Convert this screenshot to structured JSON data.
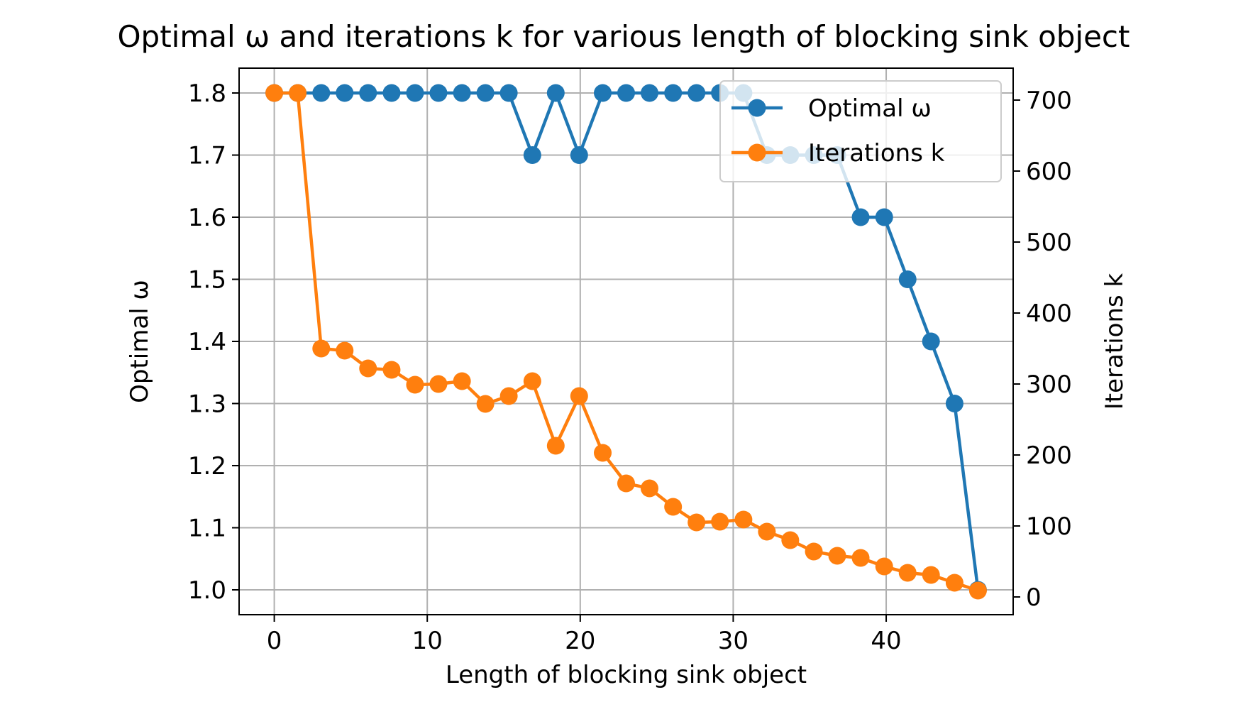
{
  "chart_data": {
    "type": "line",
    "title": "Optimal ω and iterations k for various length of blocking sink object",
    "xlabel": "Length of blocking sink object",
    "ylabel_left": "Optimal ω",
    "ylabel_right": "Iterations k",
    "xlim": [
      -2.3,
      48.3
    ],
    "ylim_left": [
      0.96,
      1.84
    ],
    "ylim_right": [
      -25,
      745
    ],
    "xticks": [
      0,
      10,
      20,
      30,
      40
    ],
    "yticks_left": [
      1.0,
      1.1,
      1.2,
      1.3,
      1.4,
      1.5,
      1.6,
      1.7,
      1.8
    ],
    "yticks_right": [
      0,
      100,
      200,
      300,
      400,
      500,
      600,
      700
    ],
    "grid": true,
    "legend_position": "upper right",
    "x": [
      0,
      1.53,
      3.07,
      4.6,
      6.13,
      7.67,
      9.2,
      10.73,
      12.27,
      13.8,
      15.33,
      16.87,
      18.4,
      19.93,
      21.47,
      23.0,
      24.53,
      26.07,
      27.6,
      29.13,
      30.67,
      32.2,
      33.73,
      35.27,
      36.8,
      38.33,
      39.87,
      41.4,
      42.93,
      44.47,
      46.0
    ],
    "series": [
      {
        "name": "Optimal ω",
        "axis": "left",
        "color": "#1f77b4",
        "values": [
          1.8,
          1.8,
          1.8,
          1.8,
          1.8,
          1.8,
          1.8,
          1.8,
          1.8,
          1.8,
          1.8,
          1.7,
          1.8,
          1.7,
          1.8,
          1.8,
          1.8,
          1.8,
          1.8,
          1.8,
          1.8,
          1.7,
          1.7,
          1.7,
          1.7,
          1.6,
          1.6,
          1.5,
          1.4,
          1.3,
          1.0
        ]
      },
      {
        "name": "Iterations k",
        "axis": "right",
        "color": "#ff7f0e",
        "values": [
          710,
          710,
          350,
          347,
          322,
          320,
          299,
          300,
          304,
          272,
          283,
          304,
          213,
          283,
          203,
          160,
          153,
          127,
          105,
          106,
          109,
          92,
          80,
          64,
          58,
          55,
          43,
          34,
          31,
          20,
          9
        ]
      }
    ]
  }
}
